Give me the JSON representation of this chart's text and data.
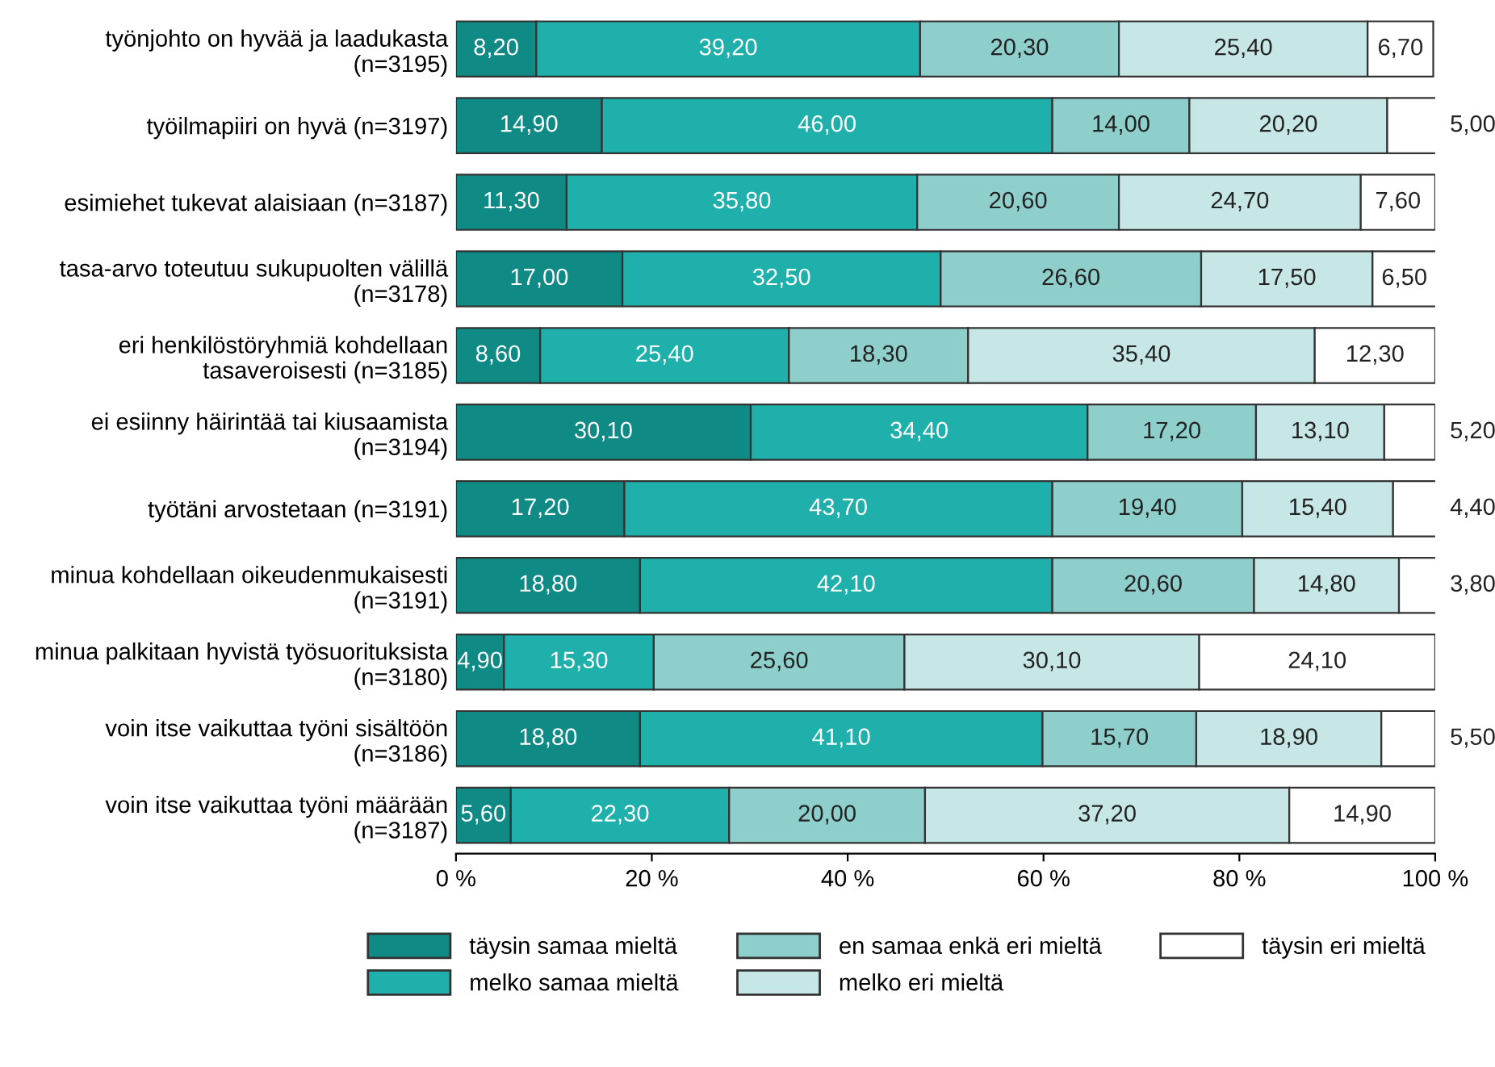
{
  "chart_data": {
    "type": "bar",
    "orientation": "horizontal",
    "stacked": true,
    "categories": [
      "työnjohto on hyvää ja laadukasta\n(n=3195)",
      "työilmapiiri on hyvä (n=3197)",
      "esimiehet tukevat alaisiaan (n=3187)",
      "tasa-arvo toteutuu sukupuolten välillä\n(n=3178)",
      "eri henkilöstöryhmiä kohdellaan\ntasaveroisesti (n=3185)",
      "ei esiinny häirintää tai kiusaamista\n(n=3194)",
      "työtäni arvostetaan (n=3191)",
      "minua kohdellaan oikeudenmukaisesti\n(n=3191)",
      "minua palkitaan hyvistä työsuorituksista\n(n=3180)",
      "voin itse vaikuttaa työni sisältöön\n(n=3186)",
      "voin itse vaikuttaa työni määrään\n(n=3187)"
    ],
    "series": [
      {
        "name": "täysin samaa mieltä",
        "color": "#0f8a85",
        "values": [
          8.2,
          14.9,
          11.3,
          17.0,
          8.6,
          30.1,
          17.2,
          18.8,
          4.9,
          18.8,
          5.6
        ],
        "value_labels": [
          "8,20",
          "14,90",
          "11,30",
          "17,00",
          "8,60",
          "30,10",
          "17,20",
          "18,80",
          "4,90",
          "18,80",
          "5,60"
        ]
      },
      {
        "name": "melko samaa mieltä",
        "color": "#1fb0ab",
        "values": [
          39.2,
          46.0,
          35.8,
          32.5,
          25.4,
          34.4,
          43.7,
          42.1,
          15.3,
          41.1,
          22.3
        ],
        "value_labels": [
          "39,20",
          "46,00",
          "35,80",
          "32,50",
          "25,40",
          "34,40",
          "43,70",
          "42,10",
          "15,30",
          "41,10",
          "22,30"
        ]
      },
      {
        "name": "en samaa enkä eri mieltä",
        "color": "#8ecfcb",
        "values": [
          20.3,
          14.0,
          20.6,
          26.6,
          18.3,
          17.2,
          19.4,
          20.6,
          25.6,
          15.7,
          20.0
        ],
        "value_labels": [
          "20,30",
          "14,00",
          "20,60",
          "26,60",
          "18,30",
          "17,20",
          "19,40",
          "20,60",
          "25,60",
          "15,70",
          "20,00"
        ]
      },
      {
        "name": "melko eri mieltä",
        "color": "#c6e7e5",
        "values": [
          25.4,
          20.2,
          24.7,
          17.5,
          35.4,
          13.1,
          15.4,
          14.8,
          30.1,
          18.9,
          37.2
        ],
        "value_labels": [
          "25,40",
          "20,20",
          "24,70",
          "17,50",
          "35,40",
          "13,10",
          "15,40",
          "14,80",
          "30,10",
          "18,90",
          "37,20"
        ]
      },
      {
        "name": "täysin eri mieltä",
        "color": "#ffffff",
        "values": [
          6.7,
          5.0,
          7.6,
          6.5,
          12.3,
          5.2,
          4.4,
          3.8,
          24.1,
          5.5,
          14.9
        ],
        "value_labels": [
          "6,70",
          "5,00",
          "7,60",
          "6,50",
          "12,30",
          "5,20",
          "4,40",
          "3,80",
          "24,10",
          "5,50",
          "14,90"
        ]
      }
    ],
    "xlim": [
      0,
      100
    ],
    "xticks": [
      {
        "value": 0,
        "label": "0 %"
      },
      {
        "value": 20,
        "label": "20 %"
      },
      {
        "value": 40,
        "label": "40 %"
      },
      {
        "value": 60,
        "label": "60 %"
      },
      {
        "value": 80,
        "label": "80 %"
      },
      {
        "value": 100,
        "label": "100 %"
      }
    ],
    "grid": false,
    "legend": "bottom"
  }
}
